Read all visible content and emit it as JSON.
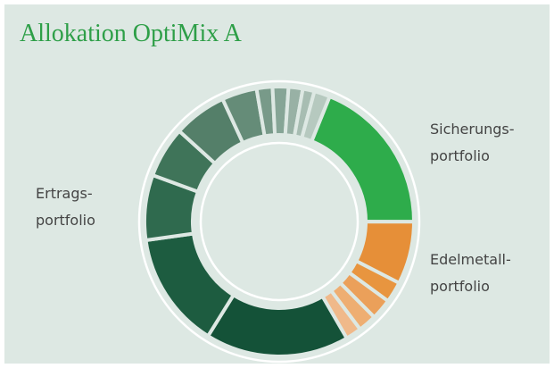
{
  "chart_data": {
    "type": "donut",
    "title": "Allokation OptiMix A",
    "values": [
      18.9,
      7.5,
      2.5,
      2.5,
      2.2,
      1.9,
      17.2,
      13.9,
      7.8,
      6.1,
      6.4,
      4.2,
      1.9,
      1.9,
      1.7,
      1.4,
      1.9
    ],
    "colors": [
      "#2eac4b",
      "#e68f38",
      "#e8953f",
      "#eba05a",
      "#eeae72",
      "#f0b98a",
      "#145238",
      "#1d5c40",
      "#2f6a4e",
      "#3f7459",
      "#547f69",
      "#658c78",
      "#789a89",
      "#86a596",
      "#98b1a5",
      "#a7bdb2",
      "#b6c9bf"
    ],
    "annotations": [
      {
        "lines": [
          "Sicherungs-",
          "portfolio"
        ]
      },
      {
        "lines": [
          "Ertrags-",
          "portfolio"
        ]
      },
      {
        "lines": [
          "Edelmetall-",
          "portfolio"
        ]
      }
    ]
  }
}
